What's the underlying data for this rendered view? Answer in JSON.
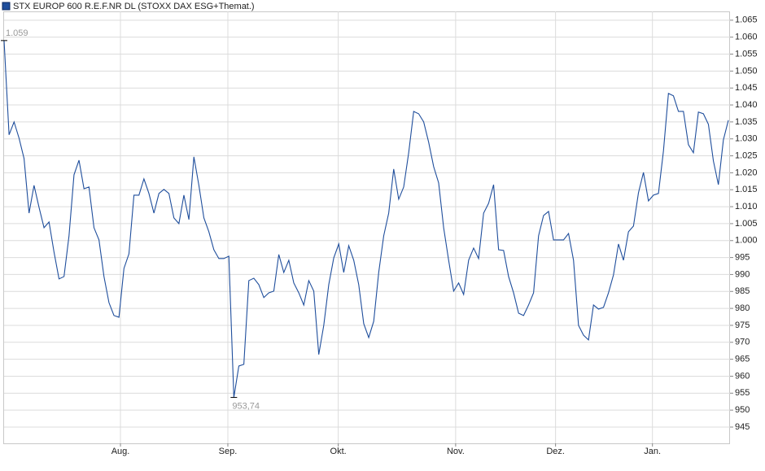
{
  "chart_data": {
    "type": "line",
    "title": "STX EUROP 600 R.E.F.NR DL (STOXX DAX ESG+Themat.)",
    "color": "#1f4e9c",
    "annotations": [
      "1.059",
      "953,74"
    ],
    "xlim": [
      0,
      145
    ],
    "xticks": [
      {
        "value": 23.3,
        "label": "Aug."
      },
      {
        "value": 44.8,
        "label": "Sep."
      },
      {
        "value": 66.9,
        "label": "Okt."
      },
      {
        "value": 90.4,
        "label": "Nov."
      },
      {
        "value": 110.4,
        "label": "Dez."
      },
      {
        "value": 129.8,
        "label": "Jan."
      }
    ],
    "ylim": [
      940.2,
      1067.6
    ],
    "yticks": [
      945,
      950,
      955,
      960,
      965,
      970,
      975,
      980,
      985,
      990,
      995,
      {
        "value": 1000,
        "label": "1.000"
      },
      {
        "value": 1005,
        "label": "1.005"
      },
      {
        "value": 1010,
        "label": "1.010"
      },
      {
        "value": 1015,
        "label": "1.015"
      },
      {
        "value": 1020,
        "label": "1.020"
      },
      {
        "value": 1025,
        "label": "1.025"
      },
      {
        "value": 1030,
        "label": "1.030"
      },
      {
        "value": 1035,
        "label": "1.035"
      },
      {
        "value": 1040,
        "label": "1.040"
      },
      {
        "value": 1045,
        "label": "1.045"
      },
      {
        "value": 1050,
        "label": "1.050"
      },
      {
        "value": 1055,
        "label": "1.055"
      },
      {
        "value": 1060,
        "label": "1.060"
      },
      {
        "value": 1065,
        "label": "1.065"
      }
    ],
    "grid": true,
    "values": [
      1059,
      1031.2,
      1035,
      1030.2,
      1024.2,
      1008.1,
      1016.3,
      1009.8,
      1003.8,
      1005.5,
      996.6,
      988.7,
      989.4,
      1001.4,
      1019.4,
      1023.7,
      1015.3,
      1015.8,
      1003.8,
      1000.2,
      989.4,
      981.7,
      977.9,
      977.4,
      991.8,
      996.1,
      1013.4,
      1013.4,
      1018.2,
      1013.9,
      1008.1,
      1013.9,
      1015.1,
      1013.9,
      1006.7,
      1005,
      1013.4,
      1006.2,
      1024.7,
      1016.3,
      1006.7,
      1002.6,
      997.3,
      994.7,
      994.7,
      995.4,
      953.74,
      963,
      963.5,
      988.2,
      988.9,
      987,
      983.2,
      984.6,
      985.1,
      995.9,
      990.6,
      994.2,
      987.5,
      984.6,
      981,
      988.2,
      985.1,
      966.4,
      975,
      987,
      994.9,
      999,
      990.6,
      998.5,
      994.2,
      987,
      975.5,
      971.4,
      976.2,
      990.6,
      1001.4,
      1008.1,
      1021.1,
      1012.2,
      1015.8,
      1025.9,
      1038.1,
      1037.4,
      1035,
      1029,
      1021.8,
      1017,
      1003.8,
      994.2,
      985.1,
      987.5,
      984.1,
      994.2,
      997.8,
      994.7,
      1008.1,
      1011,
      1016.5,
      997.3,
      997.1,
      989.4,
      984.6,
      978.6,
      977.9,
      981,
      984.6,
      1001.4,
      1007.4,
      1008.6,
      1000.2,
      1000.2,
      1000.2,
      1002.1,
      994.2,
      975,
      972.1,
      970.7,
      981,
      979.8,
      980.3,
      984.6,
      989.9,
      999,
      994.2,
      1002.6,
      1004.3,
      1014.1,
      1020.1,
      1011.7,
      1013.4,
      1013.9,
      1026.4,
      1043.4,
      1042.7,
      1038.1,
      1038.1,
      1028.3,
      1025.9,
      1037.9,
      1037.4,
      1034.3,
      1023.5,
      1016.5,
      1029.7,
      1035.5
    ]
  }
}
